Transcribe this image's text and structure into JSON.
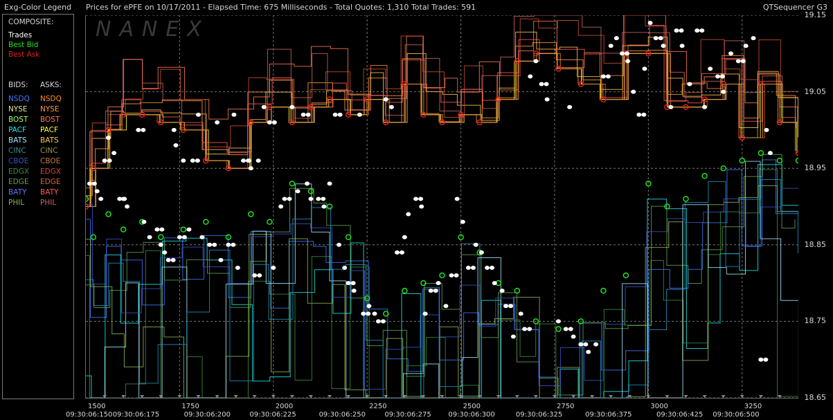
{
  "header": {
    "legend_title": "Exg-Color Legend",
    "chart_title": "Prices for  ePFE  on  10/17/2011   -  Elapsed Time: 675 Milliseconds   -  Total Quotes: 1,310  Total Trades: 591",
    "app_name": "QTSequencer G3"
  },
  "watermark": "NANEX",
  "legend": {
    "composite_label": "COMPOSITE:",
    "composite_items": [
      {
        "label": "Trades",
        "color": "#ffffff"
      },
      {
        "label": "Best Bid",
        "color": "#20e020"
      },
      {
        "label": "Best Ask",
        "color": "#e02020"
      }
    ],
    "bids_label": "BIDS:",
    "asks_label": "ASKS:",
    "exchanges": [
      {
        "bid": "NSDQ",
        "ask": "NSDQ",
        "bid_color": "#3c78ff",
        "ask_color": "#ff8c28"
      },
      {
        "bid": "NYSE",
        "ask": "NYSE",
        "bid_color": "#e8e8a0",
        "ask_color": "#ff9a3c"
      },
      {
        "bid": "BOST",
        "ask": "BOST",
        "bid_color": "#a0ff60",
        "ask_color": "#ff7850"
      },
      {
        "bid": "PACF",
        "ask": "PACF",
        "bid_color": "#20e8e8",
        "ask_color": "#ffff30"
      },
      {
        "bid": "BATS",
        "ask": "BATS",
        "bid_color": "#a0e8ff",
        "ask_color": "#ffc850"
      },
      {
        "bid": "CINC",
        "ask": "CINC",
        "bid_color": "#3c8c8c",
        "ask_color": "#a08c50"
      },
      {
        "bid": "CBOE",
        "ask": "CBOE",
        "bid_color": "#3c50c8",
        "ask_color": "#c8783c"
      },
      {
        "bid": "EDGX",
        "ask": "EDGX",
        "bid_color": "#3c8c3c",
        "ask_color": "#c85030"
      },
      {
        "bid": "EDGE",
        "ask": "EDGE",
        "bid_color": "#64a050",
        "ask_color": "#d86440"
      },
      {
        "bid": "BATY",
        "ask": "BATY",
        "bid_color": "#5a78ff",
        "ask_color": "#ff5a5a"
      },
      {
        "bid": "PHIL",
        "ask": "PHIL",
        "bid_color": "#8cb450",
        "ask_color": "#c86464"
      }
    ]
  },
  "colors": {
    "ask": [
      "#ff8c28",
      "#ff9a3c",
      "#ff7850",
      "#ffff30",
      "#ffc850",
      "#c85030",
      "#d86440",
      "#ff5a5a",
      "#c86464",
      "#e0a040"
    ],
    "bid": [
      "#3c78ff",
      "#20e8e8",
      "#3c8c3c",
      "#64a050",
      "#8cb450",
      "#a0e8ff",
      "#3c50c8",
      "#2090c0"
    ],
    "trade": "#ffffff",
    "best_bid": "#20e020",
    "best_ask": "#e02020"
  },
  "chart_data": {
    "type": "scatter",
    "ylim": [
      18.65,
      19.15
    ],
    "xlim": [
      1500,
      3400
    ],
    "y_ticks": [
      "19.15",
      "19.05",
      "18.95",
      "18.85",
      "18.75",
      "18.65"
    ],
    "y_tick_values": [
      19.15,
      19.05,
      18.95,
      18.85,
      18.75,
      18.65
    ],
    "x_ticks": [
      "1500",
      "1750",
      "2000",
      "2250",
      "2500",
      "2750",
      "3000",
      "3250"
    ],
    "x_tick_values": [
      1500,
      1750,
      2000,
      2250,
      2500,
      2750,
      3000,
      3250
    ],
    "time_labels": [
      "09:30:06:150",
      "09:30:06:175",
      "09:30:06:200",
      "09:30:06:225",
      "09:30:06:250",
      "09:30:06:275",
      "09:30:06:300",
      "09:30:06:325",
      "09:30:06:375",
      "09:30:06:425",
      "09:30:06:500"
    ],
    "time_label_values": [
      1500,
      1625,
      1815,
      1990,
      2175,
      2350,
      2520,
      2700,
      2885,
      3075,
      3225
    ],
    "best_bid": [
      [
        1500,
        18.91
      ],
      [
        1520,
        18.86
      ],
      [
        1560,
        18.89
      ],
      [
        1600,
        18.87
      ],
      [
        1650,
        18.88
      ],
      [
        1700,
        18.86
      ],
      [
        1760,
        18.87
      ],
      [
        1820,
        18.88
      ],
      [
        1880,
        18.86
      ],
      [
        1940,
        18.89
      ],
      [
        1990,
        18.88
      ],
      [
        2050,
        18.93
      ],
      [
        2100,
        18.92
      ],
      [
        2150,
        18.9
      ],
      [
        2200,
        18.86
      ],
      [
        2250,
        18.78
      ],
      [
        2300,
        18.76
      ],
      [
        2350,
        18.79
      ],
      [
        2400,
        18.8
      ],
      [
        2450,
        18.81
      ],
      [
        2500,
        18.86
      ],
      [
        2550,
        18.84
      ],
      [
        2600,
        18.8
      ],
      [
        2650,
        18.79
      ],
      [
        2700,
        18.75
      ],
      [
        2760,
        18.74
      ],
      [
        2820,
        18.75
      ],
      [
        2880,
        18.79
      ],
      [
        2940,
        18.81
      ],
      [
        3000,
        18.93
      ],
      [
        3050,
        18.9
      ],
      [
        3100,
        18.91
      ],
      [
        3150,
        18.94
      ],
      [
        3200,
        18.95
      ],
      [
        3250,
        18.96
      ],
      [
        3300,
        18.97
      ],
      [
        3350,
        18.96
      ],
      [
        3400,
        18.96
      ]
    ],
    "best_ask": [
      [
        1500,
        18.9
      ],
      [
        1520,
        18.95
      ],
      [
        1560,
        19.0
      ],
      [
        1600,
        19.02
      ],
      [
        1650,
        19.02
      ],
      [
        1700,
        19.01
      ],
      [
        1760,
        19.0
      ],
      [
        1820,
        18.96
      ],
      [
        1880,
        18.95
      ],
      [
        1940,
        19.01
      ],
      [
        1990,
        19.03
      ],
      [
        2050,
        19.01
      ],
      [
        2100,
        19.03
      ],
      [
        2150,
        19.04
      ],
      [
        2200,
        19.02
      ],
      [
        2250,
        19.04
      ],
      [
        2300,
        19.01
      ],
      [
        2350,
        19.06
      ],
      [
        2400,
        19.02
      ],
      [
        2450,
        19.01
      ],
      [
        2500,
        19.02
      ],
      [
        2550,
        19.01
      ],
      [
        2600,
        19.04
      ],
      [
        2650,
        19.09
      ],
      [
        2700,
        19.1
      ],
      [
        2760,
        19.08
      ],
      [
        2820,
        19.06
      ],
      [
        2880,
        19.04
      ],
      [
        2940,
        19.1
      ],
      [
        3000,
        19.1
      ],
      [
        3050,
        19.03
      ],
      [
        3100,
        19.03
      ],
      [
        3150,
        19.04
      ],
      [
        3200,
        19.06
      ],
      [
        3250,
        18.99
      ],
      [
        3300,
        19.06
      ],
      [
        3350,
        19.01
      ],
      [
        3400,
        18.97
      ]
    ],
    "trades": [
      [
        1510,
        18.93
      ],
      [
        1530,
        18.92
      ],
      [
        1540,
        18.91
      ],
      [
        1550,
        18.96
      ],
      [
        1560,
        18.99
      ],
      [
        1575,
        18.97
      ],
      [
        1590,
        18.91
      ],
      [
        1600,
        18.91
      ],
      [
        1610,
        18.9
      ],
      [
        1640,
        19.0
      ],
      [
        1655,
        18.88
      ],
      [
        1670,
        18.86
      ],
      [
        1690,
        18.87
      ],
      [
        1700,
        18.85
      ],
      [
        1710,
        18.84
      ],
      [
        1720,
        18.83
      ],
      [
        1735,
        19.0
      ],
      [
        1740,
        18.98
      ],
      [
        1750,
        18.86
      ],
      [
        1760,
        18.96
      ],
      [
        1775,
        18.87
      ],
      [
        1785,
        18.96
      ],
      [
        1800,
        19.02
      ],
      [
        1810,
        18.86
      ],
      [
        1830,
        18.85
      ],
      [
        1850,
        19.01
      ],
      [
        1860,
        18.83
      ],
      [
        1880,
        18.85
      ],
      [
        1895,
        19.02
      ],
      [
        1905,
        18.82
      ],
      [
        1920,
        18.96
      ],
      [
        1935,
        18.96
      ],
      [
        1940,
        18.95
      ],
      [
        1950,
        18.81
      ],
      [
        1960,
        18.96
      ],
      [
        1975,
        19.03
      ],
      [
        1990,
        19.01
      ],
      [
        2000,
        18.82
      ],
      [
        2020,
        18.9
      ],
      [
        2030,
        18.91
      ],
      [
        2050,
        19.03
      ],
      [
        2065,
        18.92
      ],
      [
        2080,
        19.02
      ],
      [
        2090,
        18.93
      ],
      [
        2100,
        18.91
      ],
      [
        2120,
        18.91
      ],
      [
        2135,
        18.9
      ],
      [
        2150,
        18.93
      ],
      [
        2165,
        19.02
      ],
      [
        2175,
        18.85
      ],
      [
        2190,
        18.82
      ],
      [
        2200,
        18.8
      ],
      [
        2215,
        18.79
      ],
      [
        2230,
        19.02
      ],
      [
        2240,
        18.76
      ],
      [
        2255,
        18.77
      ],
      [
        2270,
        18.76
      ],
      [
        2280,
        18.75
      ],
      [
        2300,
        19.04
      ],
      [
        2315,
        19.03
      ],
      [
        2330,
        18.84
      ],
      [
        2350,
        18.86
      ],
      [
        2360,
        18.89
      ],
      [
        2380,
        18.91
      ],
      [
        2395,
        18.9
      ],
      [
        2405,
        18.76
      ],
      [
        2420,
        18.79
      ],
      [
        2440,
        18.8
      ],
      [
        2460,
        18.77
      ],
      [
        2475,
        18.81
      ],
      [
        2490,
        18.91
      ],
      [
        2505,
        18.88
      ],
      [
        2520,
        18.82
      ],
      [
        2540,
        18.85
      ],
      [
        2555,
        18.84
      ],
      [
        2570,
        18.82
      ],
      [
        2590,
        18.8
      ],
      [
        2610,
        18.79
      ],
      [
        2620,
        18.77
      ],
      [
        2640,
        18.73
      ],
      [
        2660,
        18.76
      ],
      [
        2670,
        18.74
      ],
      [
        2685,
        19.07
      ],
      [
        2700,
        19.09
      ],
      [
        2715,
        19.06
      ],
      [
        2730,
        19.04
      ],
      [
        2760,
        18.75
      ],
      [
        2780,
        18.74
      ],
      [
        2790,
        19.03
      ],
      [
        2800,
        18.73
      ],
      [
        2820,
        18.72
      ],
      [
        2840,
        18.71
      ],
      [
        2860,
        18.72
      ],
      [
        2880,
        19.07
      ],
      [
        2900,
        19.11
      ],
      [
        2915,
        19.12
      ],
      [
        2930,
        19.1
      ],
      [
        2945,
        19.09
      ],
      [
        2960,
        19.05
      ],
      [
        2975,
        19.02
      ],
      [
        2990,
        19.08
      ],
      [
        3005,
        19.14
      ],
      [
        3020,
        19.12
      ],
      [
        3040,
        19.11
      ],
      [
        3060,
        19.03
      ],
      [
        3075,
        19.13
      ],
      [
        3090,
        19.11
      ],
      [
        3110,
        19.06
      ],
      [
        3130,
        19.13
      ],
      [
        3150,
        19.03
      ],
      [
        3165,
        19.08
      ],
      [
        3185,
        19.07
      ],
      [
        3200,
        19.05
      ],
      [
        3220,
        19.1
      ],
      [
        3240,
        19.09
      ],
      [
        3260,
        19.11
      ],
      [
        3280,
        19.12
      ],
      [
        3300,
        18.7
      ],
      [
        3315,
        19.0
      ],
      [
        3325,
        18.97
      ]
    ]
  }
}
